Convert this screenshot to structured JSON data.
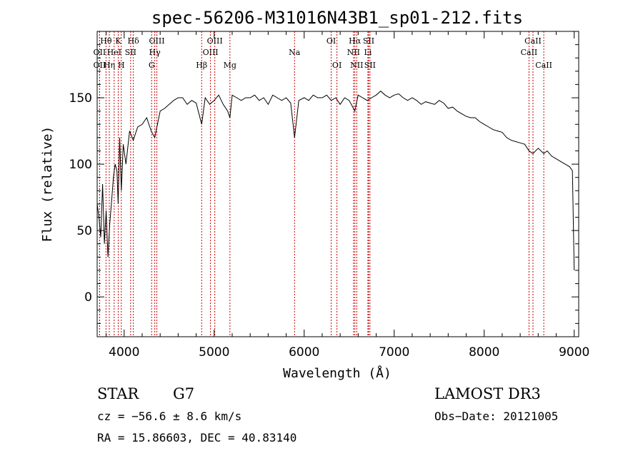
{
  "chart_data": {
    "type": "line",
    "title": "spec-56206-M31016N43B1_sp01-212.fits",
    "xlabel": "Wavelength (Å)",
    "ylabel": "Flux (relative)",
    "xlim": [
      3700,
      9050
    ],
    "ylim": [
      -30,
      200
    ],
    "x_ticks": [
      4000,
      5000,
      6000,
      7000,
      8000,
      9000
    ],
    "x_tick_labels": [
      "4000",
      "5000",
      "6000",
      "7000",
      "8000",
      "9000"
    ],
    "y_ticks": [
      0,
      50,
      100,
      150
    ],
    "y_tick_labels": [
      "0",
      "50",
      "100",
      "150"
    ],
    "series": [
      {
        "name": "spectrum",
        "x": [
          3700,
          3720,
          3740,
          3760,
          3780,
          3800,
          3820,
          3840,
          3860,
          3880,
          3900,
          3920,
          3933,
          3950,
          3968,
          3990,
          4020,
          4060,
          4101,
          4150,
          4200,
          4250,
          4300,
          4340,
          4400,
          4450,
          4500,
          4550,
          4600,
          4650,
          4700,
          4750,
          4800,
          4861,
          4900,
          4950,
          5000,
          5050,
          5100,
          5150,
          5175,
          5200,
          5250,
          5300,
          5350,
          5400,
          5450,
          5500,
          5550,
          5600,
          5650,
          5700,
          5750,
          5800,
          5850,
          5893,
          5940,
          6000,
          6050,
          6100,
          6150,
          6200,
          6250,
          6300,
          6350,
          6400,
          6450,
          6500,
          6563,
          6600,
          6650,
          6700,
          6750,
          6800,
          6850,
          6900,
          6950,
          7000,
          7050,
          7100,
          7150,
          7200,
          7250,
          7300,
          7350,
          7400,
          7450,
          7500,
          7550,
          7600,
          7650,
          7700,
          7750,
          7800,
          7850,
          7900,
          7950,
          8000,
          8050,
          8100,
          8150,
          8200,
          8250,
          8300,
          8350,
          8400,
          8450,
          8498,
          8542,
          8600,
          8662,
          8700,
          8750,
          8800,
          8850,
          8900,
          8950,
          8980,
          9000
        ],
        "values": [
          70,
          60,
          45,
          85,
          40,
          65,
          30,
          55,
          72,
          90,
          100,
          95,
          70,
          120,
          80,
          115,
          100,
          125,
          118,
          128,
          130,
          135,
          125,
          120,
          140,
          142,
          145,
          148,
          150,
          150,
          145,
          148,
          146,
          130,
          150,
          145,
          148,
          152,
          145,
          140,
          135,
          152,
          150,
          148,
          150,
          150,
          152,
          148,
          150,
          145,
          152,
          150,
          148,
          150,
          146,
          120,
          148,
          150,
          148,
          152,
          150,
          150,
          152,
          148,
          150,
          145,
          150,
          148,
          140,
          152,
          150,
          148,
          150,
          152,
          155,
          152,
          150,
          152,
          153,
          150,
          148,
          150,
          148,
          145,
          147,
          146,
          145,
          148,
          146,
          142,
          143,
          140,
          138,
          136,
          135,
          135,
          132,
          130,
          128,
          126,
          125,
          124,
          120,
          118,
          117,
          116,
          115,
          110,
          108,
          112,
          108,
          110,
          106,
          104,
          102,
          100,
          98,
          95,
          20
        ]
      }
    ],
    "line_markers": [
      {
        "label": "Hθ",
        "x": 3798,
        "row": 1
      },
      {
        "label": "OII",
        "x": 3727,
        "row": 2
      },
      {
        "label": "OII",
        "x": 3727,
        "row": 3
      },
      {
        "label": "K",
        "x": 3934,
        "row": 1
      },
      {
        "label": "HeI",
        "x": 3889,
        "row": 2
      },
      {
        "label": "Hη",
        "x": 3835,
        "row": 3
      },
      {
        "label": "Hδ",
        "x": 4102,
        "row": 1
      },
      {
        "label": "SII",
        "x": 4072,
        "row": 2
      },
      {
        "label": "H",
        "x": 3968,
        "row": 3
      },
      {
        "label": "OIII",
        "x": 4363,
        "row": 1
      },
      {
        "label": "Hγ",
        "x": 4340,
        "row": 2
      },
      {
        "label": "G",
        "x": 4305,
        "row": 3
      },
      {
        "label": "OIII",
        "x": 5007,
        "row": 1
      },
      {
        "label": "OIII",
        "x": 4959,
        "row": 2
      },
      {
        "label": "Hβ",
        "x": 4861,
        "row": 3
      },
      {
        "label": "Mg",
        "x": 5175,
        "row": 3
      },
      {
        "label": "Na",
        "x": 5893,
        "row": 2
      },
      {
        "label": "OI",
        "x": 6300,
        "row": 1
      },
      {
        "label": "OI",
        "x": 6364,
        "row": 3
      },
      {
        "label": "Hα",
        "x": 6563,
        "row": 1
      },
      {
        "label": "SII",
        "x": 6716,
        "row": 1
      },
      {
        "label": "NII",
        "x": 6548,
        "row": 2
      },
      {
        "label": "Li",
        "x": 6708,
        "row": 2
      },
      {
        "label": "NII",
        "x": 6584,
        "row": 3
      },
      {
        "label": "SII",
        "x": 6731,
        "row": 3
      },
      {
        "label": "CaII",
        "x": 8542,
        "row": 1
      },
      {
        "label": "CaII",
        "x": 8498,
        "row": 2
      },
      {
        "label": "CaII",
        "x": 8662,
        "row": 3
      }
    ]
  },
  "info": {
    "class": "STAR",
    "subclass": "G7",
    "survey": "LAMOST DR3",
    "cz": "cz = −56.6 ± 8.6 km/s",
    "obs_date": "Obs−Date: 20121005",
    "coords": "RA =  15.86603, DEC =  40.83140"
  },
  "colors": {
    "spectrum": "#000000",
    "marker": "#cc0000",
    "axis": "#000000"
  }
}
